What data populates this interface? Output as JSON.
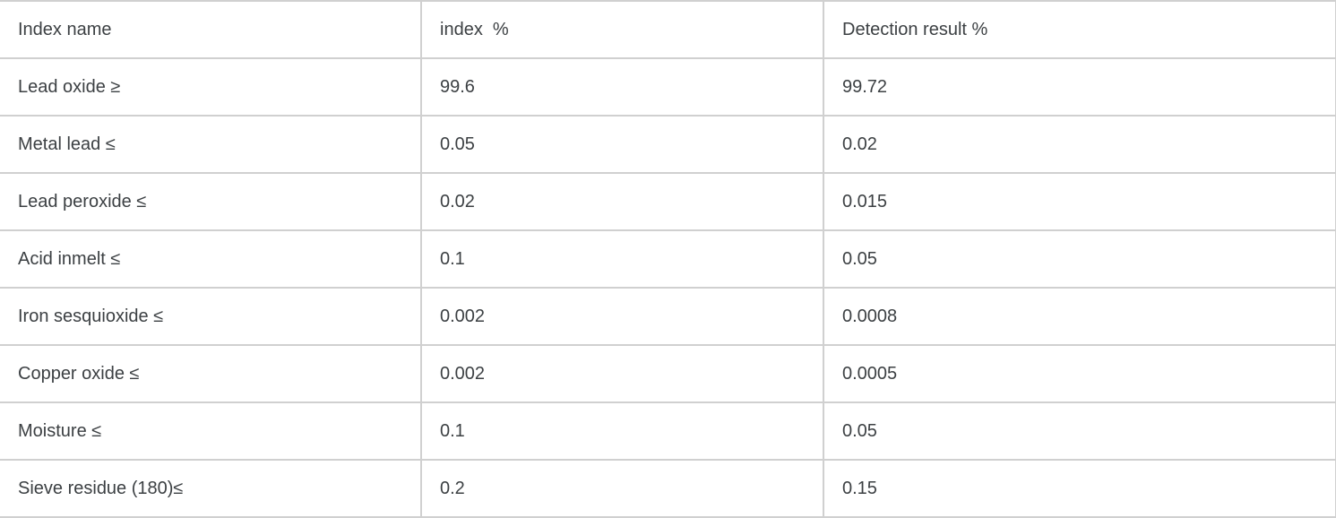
{
  "table": {
    "headers": [
      "Index name",
      "index  %",
      "Detection result %"
    ],
    "rows": [
      {
        "name": "Lead oxide ≥",
        "index": "99.6",
        "result": "99.72"
      },
      {
        "name": "Metal lead ≤",
        "index": "0.05",
        "result": "0.02"
      },
      {
        "name": "Lead peroxide ≤",
        "index": "0.02",
        "result": "0.015"
      },
      {
        "name": "Acid inmelt ≤",
        "index": "0.1",
        "result": "0.05"
      },
      {
        "name": "Iron sesquioxide ≤",
        "index": "0.002",
        "result": "0.0008"
      },
      {
        "name": "Copper oxide ≤",
        "index": "0.002",
        "result": "0.0005"
      },
      {
        "name": "Moisture ≤",
        "index": "0.1",
        "result": "0.05"
      },
      {
        "name": "Sieve residue (180)≤",
        "index": "0.2",
        "result": "0.15"
      }
    ]
  },
  "colors": {
    "border": "#d0d0d0",
    "text": "#3c4043",
    "background": "#ffffff"
  }
}
